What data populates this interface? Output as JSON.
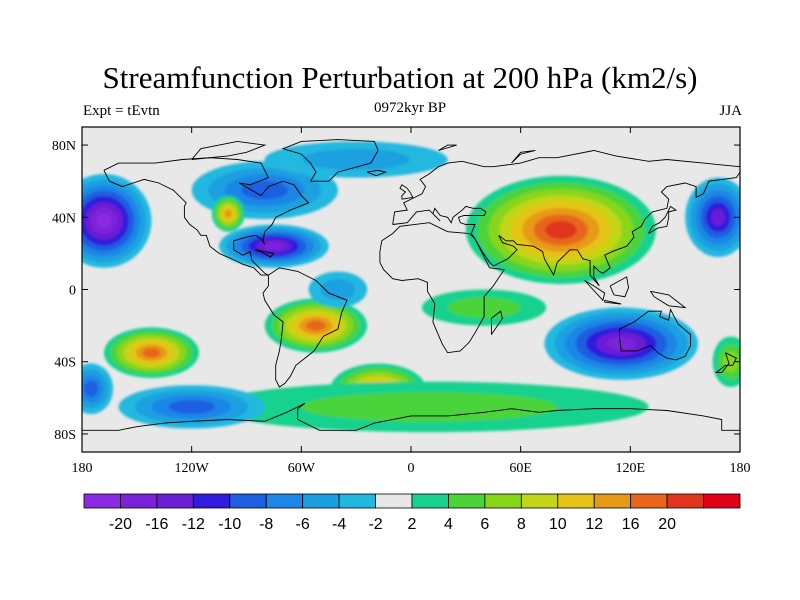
{
  "header": {
    "title": "Streamfunction Perturbation at 200 hPa (km2/s)",
    "left": "Expt = tEvtn",
    "center": "0972kyr BP",
    "right": "JJA"
  },
  "map": {
    "lon_range": [
      -180,
      180
    ],
    "lat_range": [
      -90,
      90
    ],
    "lat_ticks": [
      {
        "value": 80,
        "label": "80N"
      },
      {
        "value": 40,
        "label": "40N"
      },
      {
        "value": 0,
        "label": "0"
      },
      {
        "value": -40,
        "label": "40S"
      },
      {
        "value": -80,
        "label": "80S"
      }
    ],
    "lon_ticks": [
      {
        "value": -180,
        "label": "180"
      },
      {
        "value": -120,
        "label": "120W"
      },
      {
        "value": -60,
        "label": "60W"
      },
      {
        "value": 0,
        "label": "0"
      },
      {
        "value": 60,
        "label": "60E"
      },
      {
        "value": 120,
        "label": "120E"
      },
      {
        "value": 180,
        "label": "180"
      }
    ],
    "background_color": "#e8e8e8",
    "features": [
      {
        "name": "asia-anticyclone",
        "lon": 82,
        "lat": 33,
        "rlon": 52,
        "rlat": 30,
        "level": 20
      },
      {
        "name": "west-pacific-cyclone",
        "lon": -168,
        "lat": 38,
        "rlon": 26,
        "rlat": 26,
        "level": -20
      },
      {
        "name": "east-pacific-cyclone",
        "lon": 168,
        "lat": 40,
        "rlon": 18,
        "rlat": 22,
        "level": -14
      },
      {
        "name": "north-america-low",
        "lon": -75,
        "lat": 24,
        "rlon": 30,
        "rlat": 12,
        "level": -16
      },
      {
        "name": "greenland-low",
        "lon": -80,
        "lat": 55,
        "rlon": 40,
        "rlat": 16,
        "level": -8
      },
      {
        "name": "arctic-low",
        "lon": -30,
        "lat": 72,
        "rlon": 50,
        "rlat": 10,
        "level": -4
      },
      {
        "name": "labrador-high",
        "lon": -100,
        "lat": 42,
        "rlon": 9,
        "rlat": 10,
        "level": 14
      },
      {
        "name": "south-america-high",
        "lon": -52,
        "lat": -20,
        "rlon": 28,
        "rlat": 15,
        "level": 16
      },
      {
        "name": "south-pacific-high",
        "lon": -142,
        "lat": -35,
        "rlon": 26,
        "rlat": 14,
        "level": 16
      },
      {
        "name": "south-atlantic-high",
        "lon": -18,
        "lat": -55,
        "rlon": 26,
        "rlat": 14,
        "level": 14
      },
      {
        "name": "south-indian-high",
        "lon": 40,
        "lat": -10,
        "rlon": 34,
        "rlat": 10,
        "level": 4
      },
      {
        "name": "southern-ocean-ring",
        "lon": 10,
        "lat": -65,
        "rlon": 120,
        "rlat": 14,
        "level": 4
      },
      {
        "name": "australia-low",
        "lon": 115,
        "lat": -30,
        "rlon": 42,
        "rlat": 20,
        "level": -16
      },
      {
        "name": "southeast-pacific-low",
        "lon": -120,
        "lat": -65,
        "rlon": 40,
        "rlat": 12,
        "level": -8
      },
      {
        "name": "west-southern-low",
        "lon": -175,
        "lat": -55,
        "rlon": 12,
        "rlat": 14,
        "level": -8
      },
      {
        "name": "west-atlantic-low",
        "lon": -40,
        "lat": 0,
        "rlon": 16,
        "rlat": 10,
        "level": -4
      },
      {
        "name": "east-southern-high",
        "lon": 175,
        "lat": -40,
        "rlon": 10,
        "rlat": 14,
        "level": 6
      }
    ]
  },
  "colorbar": {
    "colors": [
      "#8a2be2",
      "#7b22d9",
      "#6a1fd4",
      "#2e1ddc",
      "#1d5fe0",
      "#1e86e6",
      "#1aa0e0",
      "#21b8e0",
      "#e8e8e8",
      "#19d28e",
      "#4cd33a",
      "#88d61c",
      "#c4d418",
      "#e6c417",
      "#e69a17",
      "#e8661b",
      "#e0351c",
      "#e0001a"
    ],
    "labels": [
      "-20",
      "-16",
      "-12",
      "-10",
      "-8",
      "-6",
      "-4",
      "-2",
      "2",
      "4",
      "6",
      "8",
      "10",
      "12",
      "16",
      "20"
    ]
  }
}
